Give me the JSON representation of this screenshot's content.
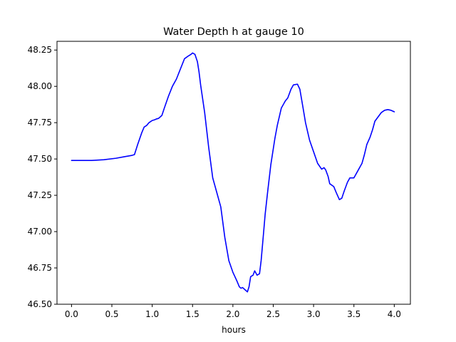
{
  "chart_data": {
    "type": "line",
    "title": "Water Depth h at gauge 10",
    "xlabel": "hours",
    "ylabel": "",
    "xlim": [
      -0.18,
      4.2
    ],
    "ylim": [
      46.5,
      48.31
    ],
    "xticks": [
      0.0,
      0.5,
      1.0,
      1.5,
      2.0,
      2.5,
      3.0,
      3.5,
      4.0
    ],
    "xtick_labels": [
      "0.0",
      "0.5",
      "1.0",
      "1.5",
      "2.0",
      "2.5",
      "3.0",
      "3.5",
      "4.0"
    ],
    "yticks": [
      46.5,
      46.75,
      47.0,
      47.25,
      47.5,
      47.75,
      48.0,
      48.25
    ],
    "ytick_labels": [
      "46.50",
      "46.75",
      "47.00",
      "47.25",
      "47.50",
      "47.75",
      "48.00",
      "48.25"
    ],
    "grid": false,
    "series": [
      {
        "color": "#0000ff",
        "x": [
          0.0,
          0.25,
          0.4,
          0.55,
          0.65,
          0.75,
          0.78,
          0.82,
          0.87,
          0.9,
          0.93,
          0.96,
          1.0,
          1.03,
          1.05,
          1.08,
          1.12,
          1.15,
          1.2,
          1.25,
          1.3,
          1.35,
          1.4,
          1.45,
          1.48,
          1.5,
          1.53,
          1.56,
          1.58,
          1.6,
          1.65,
          1.7,
          1.75,
          1.8,
          1.85,
          1.9,
          1.95,
          2.0,
          2.05,
          2.08,
          2.1,
          2.12,
          2.15,
          2.18,
          2.2,
          2.22,
          2.25,
          2.27,
          2.3,
          2.33,
          2.35,
          2.38,
          2.4,
          2.43,
          2.47,
          2.52,
          2.55,
          2.6,
          2.65,
          2.68,
          2.72,
          2.75,
          2.8,
          2.83,
          2.87,
          2.9,
          2.95,
          3.0,
          3.05,
          3.1,
          3.13,
          3.15,
          3.18,
          3.2,
          3.25,
          3.28,
          3.32,
          3.35,
          3.38,
          3.42,
          3.45,
          3.5,
          3.55,
          3.6,
          3.63,
          3.66,
          3.7,
          3.73,
          3.76,
          3.8,
          3.84,
          3.88,
          3.92,
          3.96,
          4.0
        ],
        "values": [
          47.49,
          47.49,
          47.495,
          47.505,
          47.515,
          47.525,
          47.53,
          47.6,
          47.68,
          47.72,
          47.73,
          47.75,
          47.765,
          47.77,
          47.775,
          47.78,
          47.8,
          47.85,
          47.93,
          48.0,
          48.05,
          48.12,
          48.19,
          48.21,
          48.22,
          48.23,
          48.22,
          48.17,
          48.1,
          48.01,
          47.82,
          47.58,
          47.37,
          47.27,
          47.17,
          46.96,
          46.8,
          46.72,
          46.66,
          46.62,
          46.61,
          46.615,
          46.6,
          46.585,
          46.62,
          46.69,
          46.7,
          46.73,
          46.7,
          46.71,
          46.8,
          46.99,
          47.12,
          47.27,
          47.46,
          47.64,
          47.73,
          47.85,
          47.9,
          47.92,
          47.98,
          48.01,
          48.015,
          47.98,
          47.85,
          47.75,
          47.63,
          47.55,
          47.47,
          47.43,
          47.44,
          47.425,
          47.38,
          47.33,
          47.31,
          47.27,
          47.22,
          47.23,
          47.28,
          47.34,
          47.37,
          47.37,
          47.42,
          47.47,
          47.53,
          47.6,
          47.65,
          47.7,
          47.76,
          47.79,
          47.82,
          47.835,
          47.84,
          47.835,
          47.825
        ]
      }
    ]
  }
}
